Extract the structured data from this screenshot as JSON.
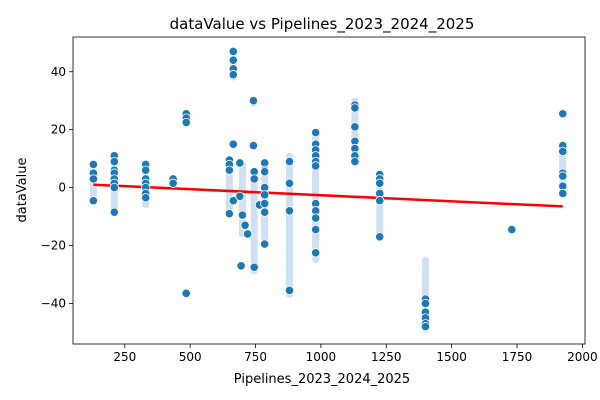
{
  "chart_data": {
    "type": "scatter",
    "title": "dataValue vs Pipelines_2023_2024_2025",
    "xlabel": "Pipelines_2023_2024_2025",
    "ylabel": "dataValue",
    "xlim": [
      52,
      2010
    ],
    "ylim": [
      -54,
      52
    ],
    "xticks": [
      250,
      500,
      750,
      1000,
      1250,
      1500,
      1750,
      2000
    ],
    "yticks": [
      -40,
      -20,
      0,
      20,
      40
    ],
    "grid": false,
    "legend": "none",
    "point_color": "#1f77b4",
    "ci_color": "#c6dbef",
    "trend_color": "#ff0000",
    "trend_line": {
      "x": [
        130,
        1925
      ],
      "y": [
        1,
        -6.5
      ]
    },
    "points": [
      [
        130,
        8
      ],
      [
        130,
        5
      ],
      [
        130,
        3
      ],
      [
        130,
        -4.5
      ],
      [
        210,
        11
      ],
      [
        210,
        9
      ],
      [
        210,
        6
      ],
      [
        210,
        5
      ],
      [
        210,
        3
      ],
      [
        210,
        1.5
      ],
      [
        210,
        0
      ],
      [
        210,
        -8.5
      ],
      [
        330,
        8
      ],
      [
        330,
        6
      ],
      [
        330,
        3
      ],
      [
        330,
        1.5
      ],
      [
        330,
        0
      ],
      [
        330,
        -2
      ],
      [
        330,
        -3.5
      ],
      [
        435,
        3
      ],
      [
        435,
        1.5
      ],
      [
        485,
        25.5
      ],
      [
        485,
        24
      ],
      [
        485,
        22.5
      ],
      [
        485,
        -36.5
      ],
      [
        650,
        9.5
      ],
      [
        650,
        8
      ],
      [
        650,
        6
      ],
      [
        650,
        -9
      ],
      [
        665,
        47
      ],
      [
        665,
        44
      ],
      [
        665,
        41
      ],
      [
        665,
        39
      ],
      [
        665,
        15
      ],
      [
        665,
        -4.5
      ],
      [
        690,
        8.5
      ],
      [
        690,
        -3
      ],
      [
        695,
        -27
      ],
      [
        700,
        -9.5
      ],
      [
        710,
        -13
      ],
      [
        720,
        -16
      ],
      [
        742,
        30
      ],
      [
        742,
        14.5
      ],
      [
        745,
        5.5
      ],
      [
        745,
        3
      ],
      [
        745,
        -27.5
      ],
      [
        765,
        -6
      ],
      [
        785,
        8.5
      ],
      [
        785,
        6
      ],
      [
        785,
        5.5
      ],
      [
        785,
        0
      ],
      [
        785,
        -2.5
      ],
      [
        785,
        -5.5
      ],
      [
        785,
        -8.5
      ],
      [
        785,
        -19.5
      ],
      [
        880,
        9
      ],
      [
        880,
        1.5
      ],
      [
        880,
        -8
      ],
      [
        880,
        -35.5
      ],
      [
        980,
        19
      ],
      [
        980,
        15
      ],
      [
        980,
        13
      ],
      [
        980,
        11
      ],
      [
        980,
        9
      ],
      [
        980,
        7.5
      ],
      [
        980,
        -5.5
      ],
      [
        980,
        -8
      ],
      [
        980,
        -10.5
      ],
      [
        980,
        -14.5
      ],
      [
        980,
        -22.5
      ],
      [
        1130,
        28.5
      ],
      [
        1130,
        27.5
      ],
      [
        1130,
        21
      ],
      [
        1130,
        16
      ],
      [
        1130,
        13.5
      ],
      [
        1130,
        11
      ],
      [
        1130,
        9
      ],
      [
        1225,
        4.5
      ],
      [
        1225,
        3
      ],
      [
        1225,
        1.5
      ],
      [
        1225,
        -2
      ],
      [
        1225,
        -4.5
      ],
      [
        1225,
        -17
      ],
      [
        1400,
        -38.5
      ],
      [
        1400,
        -40
      ],
      [
        1400,
        -43
      ],
      [
        1400,
        -45
      ],
      [
        1400,
        -47
      ],
      [
        1400,
        -48
      ],
      [
        1730,
        -14.5
      ],
      [
        1925,
        25.5
      ],
      [
        1925,
        14.5
      ],
      [
        1925,
        12.5
      ],
      [
        1925,
        5
      ],
      [
        1925,
        4
      ],
      [
        1925,
        0.5
      ],
      [
        1925,
        -2
      ]
    ],
    "ci_bars": [
      [
        130,
        -6,
        9
      ],
      [
        210,
        -9,
        12
      ],
      [
        330,
        -7,
        9
      ],
      [
        435,
        0,
        4
      ],
      [
        485,
        21,
        27
      ],
      [
        485,
        -38,
        -35
      ],
      [
        650,
        -10,
        11
      ],
      [
        665,
        37,
        48
      ],
      [
        700,
        -17,
        9
      ],
      [
        742,
        28,
        31
      ],
      [
        745,
        -30,
        7
      ],
      [
        785,
        -21,
        10
      ],
      [
        880,
        -38,
        12
      ],
      [
        980,
        -26,
        20
      ],
      [
        1130,
        8,
        31
      ],
      [
        1225,
        -18,
        6
      ],
      [
        1400,
        -50,
        -24
      ],
      [
        1730,
        -16,
        -13
      ],
      [
        1925,
        -3,
        15
      ]
    ]
  }
}
